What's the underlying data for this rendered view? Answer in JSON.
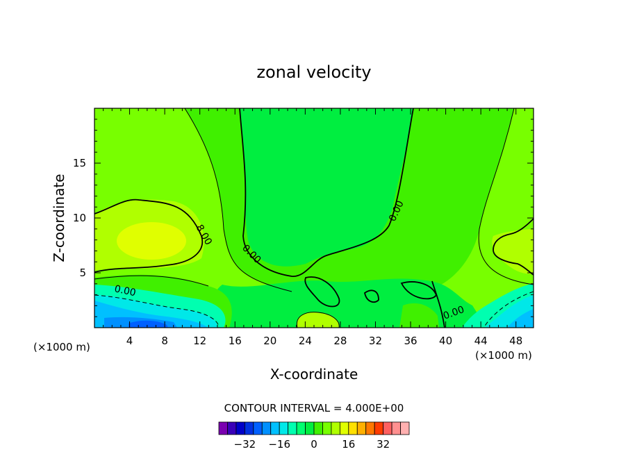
{
  "chart_data": {
    "type": "heatmap",
    "title": "zonal velocity",
    "xlabel": "X-coordinate",
    "ylabel": "Z-coordinate",
    "x_units_left": "(×1000 m)",
    "x_units_right": "(×1000 m)",
    "xlim": [
      0,
      50
    ],
    "ylim": [
      0,
      20
    ],
    "x_ticks": [
      4,
      8,
      12,
      16,
      20,
      24,
      28,
      32,
      36,
      40,
      44,
      48
    ],
    "y_ticks": [
      5,
      10,
      15
    ],
    "contour_interval_text": "CONTOUR INTERVAL = 4.000E+00",
    "contour_labels": [
      "8.00",
      "0.00",
      "0.00",
      "0.00",
      "0.00"
    ],
    "colorbar": {
      "tick_values": [
        -32,
        -16,
        0,
        16,
        32
      ],
      "tick_labels": [
        "−32",
        "−16",
        "0",
        "16",
        "32"
      ],
      "levels": [
        -40,
        -36,
        -32,
        -28,
        -24,
        -20,
        -16,
        -12,
        -8,
        -4,
        0,
        4,
        8,
        12,
        16,
        20,
        24,
        28,
        32,
        36,
        40
      ],
      "colors": [
        "#7a00b0",
        "#3a00b8",
        "#0000c8",
        "#0030e0",
        "#0060ff",
        "#0090ff",
        "#00c0ff",
        "#00e8e8",
        "#00ffb0",
        "#00ff70",
        "#00ee40",
        "#40f000",
        "#78ff00",
        "#b0ff00",
        "#e0ff00",
        "#ffe000",
        "#ffb000",
        "#ff7800",
        "#ff3c00",
        "#ff6060",
        "#ff9090",
        "#ffb0b0"
      ]
    }
  }
}
